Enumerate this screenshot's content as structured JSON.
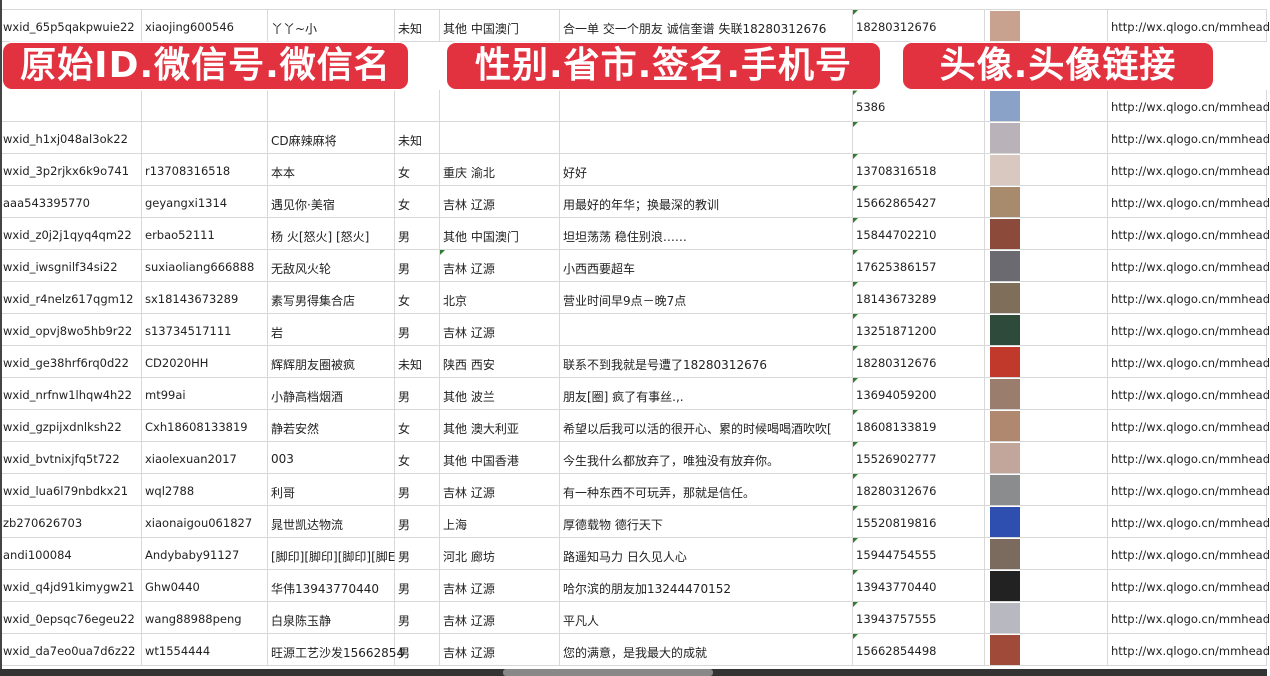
{
  "banners": [
    {
      "text": "原始ID.微信号.微信名"
    },
    {
      "text": "性别.省市.签名.手机号"
    },
    {
      "text": "头像.头像链接"
    }
  ],
  "avatar_colors": [
    "#c9a28f",
    "#8aa2c8",
    "#b9b2b8",
    "#d8c8c0",
    "#a88a6c",
    "#8c4a3a",
    "#6a6a70",
    "#7f6f5a",
    "#2d4a3a",
    "#c0392b",
    "#9a7d6c",
    "#b08870",
    "#c2a69b",
    "#8a8c8e",
    "#2f4fb0",
    "#7b6a5e",
    "#222222",
    "#b8b8c0",
    "#a04a3a"
  ],
  "rows": [
    [
      "wxid_65p5qakpwuie22",
      "xiaojing600546",
      "丫丫~小",
      "未知",
      "其他 中国澳门",
      "合一单 交一个朋友 诚信奎谱 失联18280312676",
      "18280312676",
      "",
      "http://wx.qlogo.cn/mmhead"
    ],
    [
      "",
      "",
      "",
      "",
      "",
      "",
      "5386",
      "",
      "http://wx.qlogo.cn/mmhead"
    ],
    [
      "wxid_h1xj048al3ok22",
      "",
      "CD麻辣麻将",
      "未知",
      "",
      "",
      "",
      "",
      "http://wx.qlogo.cn/mmhead"
    ],
    [
      "wxid_3p2rjkx6k9o741",
      "r13708316518",
      "本本",
      "女",
      "重庆 渝北",
      "好好",
      "13708316518",
      "",
      "http://wx.qlogo.cn/mmhead"
    ],
    [
      "aaa543395770",
      "geyangxi1314",
      "遇见你·美宿",
      "女",
      "吉林 辽源",
      "用最好的年华；换最深的教训",
      "15662865427",
      "",
      "http://wx.qlogo.cn/mmhead"
    ],
    [
      "wxid_z0j2j1qyq4qm22",
      "erbao52111",
      "杨 火[怒火] [怒火]",
      "男",
      "其他 中国澳门",
      "坦坦荡荡 稳住别浪……",
      "15844702210",
      "",
      "http://wx.qlogo.cn/mmhead"
    ],
    [
      "wxid_iwsgnilf34si22",
      "suxiaoliang666888",
      "无敌风火轮",
      "男",
      "吉林 辽源",
      "小西西要超车",
      "17625386157",
      "",
      "http://wx.qlogo.cn/mmhead"
    ],
    [
      "wxid_r4nelz617qgm12",
      "sx18143673289",
      "素写男得集合店",
      "女",
      "北京",
      "营业时间早9点－晚7点",
      "18143673289",
      "",
      "http://wx.qlogo.cn/mmhead"
    ],
    [
      "wxid_opvj8wo5hb9r22",
      "s13734517111",
      "岩",
      "男",
      "吉林 辽源",
      "",
      "13251871200",
      "",
      "http://wx.qlogo.cn/mmhead"
    ],
    [
      "wxid_ge38hrf6rq0d22",
      "CD2020HH",
      "辉辉朋友圈被疯",
      "未知",
      "陕西 西安",
      "联系不到我就是号遭了18280312676",
      "18280312676",
      "",
      "http://wx.qlogo.cn/mmhead"
    ],
    [
      "wxid_nrfnw1lhqw4h22",
      "mt99ai",
      "小静高档烟酒",
      "男",
      "其他 波兰",
      "朋友[圈] 疯了有事丝.,.",
      "13694059200",
      "",
      "http://wx.qlogo.cn/mmhead"
    ],
    [
      "wxid_gzpijxdnlksh22",
      "Cxh18608133819",
      "静若安然",
      "女",
      "其他 澳大利亚",
      "希望以后我可以活的很开心、累的时候喝喝酒吹吹[",
      "18608133819",
      "",
      "http://wx.qlogo.cn/mmhead"
    ],
    [
      "wxid_bvtnixjfq5t722",
      "xiaolexuan2017",
      "003",
      "女",
      "其他 中国香港",
      "今生我什么都放弃了，唯独没有放弃你。",
      "15526902777",
      "",
      "http://wx.qlogo.cn/mmhead"
    ],
    [
      "wxid_lua6l79nbdkx21",
      "wql2788",
      "利哥",
      "男",
      "吉林 辽源",
      "有一种东西不可玩弄，那就是信任。",
      "18280312676",
      "",
      "http://wx.qlogo.cn/mmhead"
    ],
    [
      "zb270626703",
      "xiaonaigou061827",
      "晁世凯达物流",
      "男",
      "上海",
      "厚德载物 德行天下",
      "15520819816",
      "",
      "http://wx.qlogo.cn/mmhead"
    ],
    [
      "andi100084",
      "Andybaby91127",
      "[脚印][脚印][脚印][脚E",
      "男",
      "河北 廊坊",
      "路遥知马力 日久见人心",
      "15944754555",
      "",
      "http://wx.qlogo.cn/mmhead"
    ],
    [
      "wxid_q4jd91kimygw21",
      "Ghw0440",
      "华伟13943770440",
      "男",
      "吉林 辽源",
      "哈尔滨的朋友加13244470152",
      "13943770440",
      "",
      "http://wx.qlogo.cn/mmhead"
    ],
    [
      "wxid_0epsqc76egeu22",
      "wang88988peng",
      "白泉陈玉静",
      "男",
      "吉林 辽源",
      "平凡人",
      "13943757555",
      "",
      "http://wx.qlogo.cn/mmhead"
    ],
    [
      "wxid_da7eo0ua7d6z22",
      "wt1554444",
      "旺源工艺沙发15662854",
      "男",
      "吉林 辽源",
      "您的满意，是我最大的成就",
      "15662854498",
      "",
      "http://wx.qlogo.cn/mmhead"
    ]
  ]
}
